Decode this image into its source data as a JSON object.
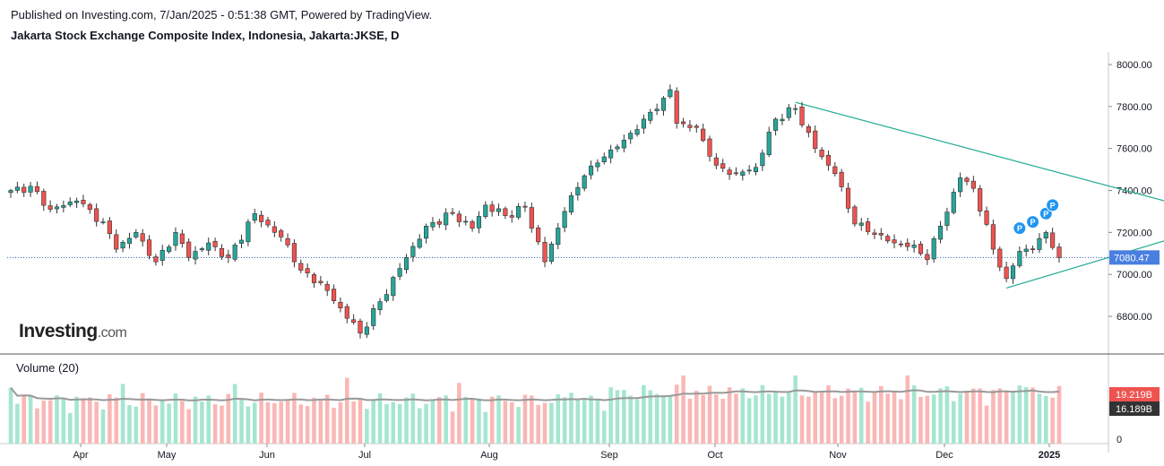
{
  "header": {
    "published": "Published on Investing.com, 7/Jan/2025 - 0:51:38 GMT, Powered by TradingView.",
    "title": "Jakarta Stock Exchange Composite Index, Indonesia, Jakarta:JKSE, D"
  },
  "logo": {
    "main": "Investing",
    "suffix": ".com"
  },
  "volume_title": "Volume (20)",
  "colors": {
    "up": "#26a69a",
    "down": "#ef5350",
    "trend": "#22ab94",
    "price_tag": "#4a7fe0",
    "vol_up": "#a5e6cf",
    "vol_down": "#f9b7b5",
    "vol_ma": "#999999"
  },
  "chart_data": {
    "type": "candlestick",
    "y_axis": {
      "min": 6600,
      "max": 8100,
      "ticks": [
        6800,
        7000,
        7200,
        7400,
        7600,
        7800,
        8000
      ],
      "labels": [
        "6800.00",
        "7000.00",
        "7200.00",
        "7400.00",
        "7600.00",
        "7800.00",
        "8000.00"
      ]
    },
    "x_axis_labels": [
      "Apr",
      "May",
      "Jun",
      "Jul",
      "Aug",
      "Sep",
      "Oct",
      "Nov",
      "Dec",
      "2025"
    ],
    "last_price": 7080.47,
    "last_price_label": "7080.47",
    "anchors": [
      {
        "i": 0,
        "c": 7400
      },
      {
        "i": 3,
        "c": 7420
      },
      {
        "i": 6,
        "c": 7310
      },
      {
        "i": 10,
        "c": 7350
      },
      {
        "i": 14,
        "c": 7250
      },
      {
        "i": 16,
        "c": 7120
      },
      {
        "i": 19,
        "c": 7200
      },
      {
        "i": 22,
        "c": 7060
      },
      {
        "i": 25,
        "c": 7200
      },
      {
        "i": 27,
        "c": 7080
      },
      {
        "i": 30,
        "c": 7150
      },
      {
        "i": 33,
        "c": 7080
      },
      {
        "i": 37,
        "c": 7290
      },
      {
        "i": 40,
        "c": 7200
      },
      {
        "i": 42,
        "c": 7140
      },
      {
        "i": 44,
        "c": 7020
      },
      {
        "i": 47,
        "c": 6960
      },
      {
        "i": 50,
        "c": 6840
      },
      {
        "i": 53,
        "c": 6720
      },
      {
        "i": 56,
        "c": 6870
      },
      {
        "i": 60,
        "c": 7080
      },
      {
        "i": 63,
        "c": 7230
      },
      {
        "i": 67,
        "c": 7290
      },
      {
        "i": 70,
        "c": 7220
      },
      {
        "i": 72,
        "c": 7330
      },
      {
        "i": 75,
        "c": 7280
      },
      {
        "i": 78,
        "c": 7320
      },
      {
        "i": 81,
        "c": 7060
      },
      {
        "i": 84,
        "c": 7300
      },
      {
        "i": 87,
        "c": 7470
      },
      {
        "i": 90,
        "c": 7560
      },
      {
        "i": 93,
        "c": 7640
      },
      {
        "i": 96,
        "c": 7740
      },
      {
        "i": 99,
        "c": 7840
      },
      {
        "i": 100,
        "c": 7880
      },
      {
        "i": 101,
        "c": 7720
      },
      {
        "i": 104,
        "c": 7700
      },
      {
        "i": 107,
        "c": 7520
      },
      {
        "i": 110,
        "c": 7480
      },
      {
        "i": 113,
        "c": 7510
      },
      {
        "i": 116,
        "c": 7740
      },
      {
        "i": 119,
        "c": 7790
      },
      {
        "i": 122,
        "c": 7600
      },
      {
        "i": 125,
        "c": 7480
      },
      {
        "i": 128,
        "c": 7240
      },
      {
        "i": 131,
        "c": 7190
      },
      {
        "i": 134,
        "c": 7150
      },
      {
        "i": 137,
        "c": 7140
      },
      {
        "i": 139,
        "c": 7070
      },
      {
        "i": 141,
        "c": 7230
      },
      {
        "i": 144,
        "c": 7460
      },
      {
        "i": 146,
        "c": 7410
      },
      {
        "i": 149,
        "c": 7120
      },
      {
        "i": 151,
        "c": 6980
      },
      {
        "i": 153,
        "c": 7110
      },
      {
        "i": 155,
        "c": 7120
      },
      {
        "i": 157,
        "c": 7200
      },
      {
        "i": 159,
        "c": 7080
      }
    ],
    "trendlines": [
      {
        "from": {
          "i": 119,
          "v": 7820
        },
        "to": {
          "i": 175,
          "v": 7350
        }
      },
      {
        "from": {
          "i": 151,
          "v": 6935
        },
        "to": {
          "i": 175,
          "v": 7160
        }
      }
    ],
    "markers": [
      {
        "i": 153,
        "v": 7220,
        "label": "P"
      },
      {
        "i": 155,
        "v": 7250,
        "label": "P"
      },
      {
        "i": 157,
        "v": 7290,
        "label": "P"
      },
      {
        "i": 158,
        "v": 7330,
        "label": "P"
      }
    ],
    "volume": {
      "y_labels": [
        "0"
      ],
      "last_volume_label": "19.219B",
      "volume_ma_label": "16.189B"
    }
  }
}
